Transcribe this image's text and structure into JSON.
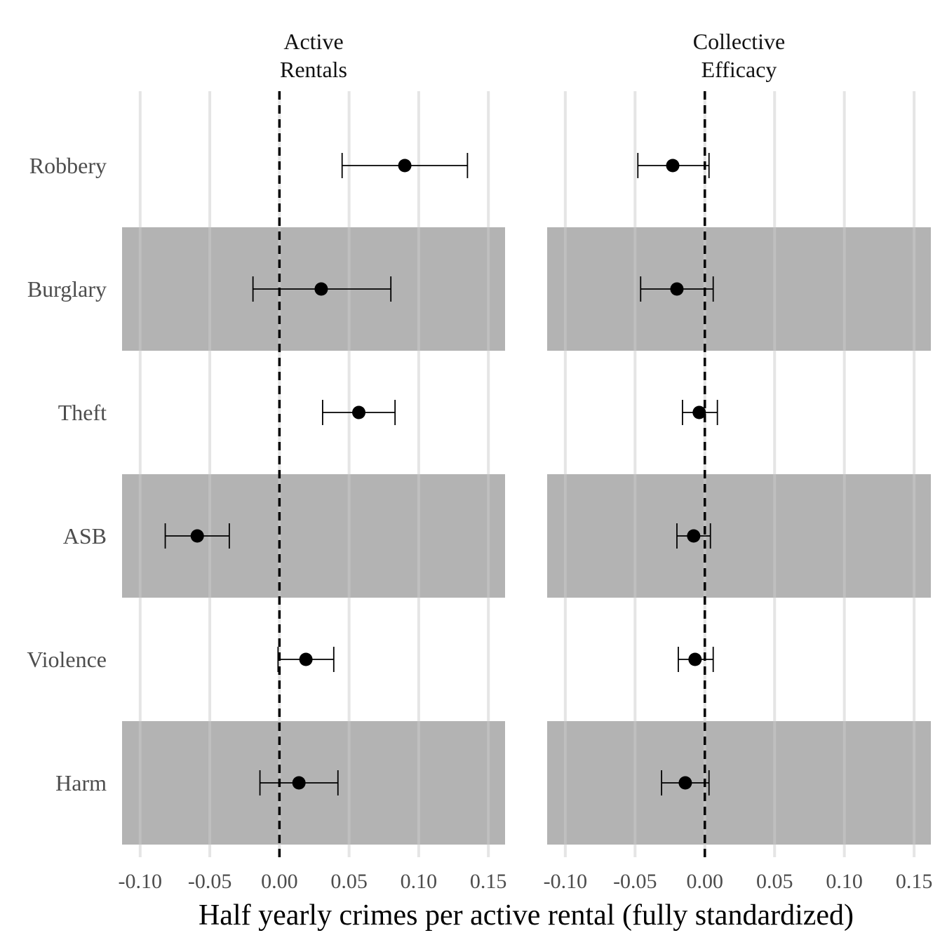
{
  "chart_data": {
    "type": "scatter",
    "subtype": "coefficient-plot-with-error-bars",
    "xlabel": "Half yearly crimes per active rental (fully standardized)",
    "x_ticks": [
      "-0.10",
      "-0.05",
      "0.00",
      "0.05",
      "0.10",
      "0.15"
    ],
    "xlim": [
      -0.113,
      0.162
    ],
    "reference_line_x": 0,
    "categories": [
      "Robbery",
      "Burglary",
      "Theft",
      "ASB",
      "Violence",
      "Harm"
    ],
    "shaded_rows": [
      "Burglary",
      "ASB",
      "Harm"
    ],
    "grid": "vertical-major",
    "facets": [
      {
        "title_lines": [
          "Active",
          "Rentals"
        ],
        "points": [
          {
            "category": "Robbery",
            "estimate": 0.09,
            "lower": 0.045,
            "upper": 0.135
          },
          {
            "category": "Burglary",
            "estimate": 0.03,
            "lower": -0.019,
            "upper": 0.08
          },
          {
            "category": "Theft",
            "estimate": 0.057,
            "lower": 0.031,
            "upper": 0.083
          },
          {
            "category": "ASB",
            "estimate": -0.059,
            "lower": -0.082,
            "upper": -0.036
          },
          {
            "category": "Violence",
            "estimate": 0.019,
            "lower": -0.001,
            "upper": 0.039
          },
          {
            "category": "Harm",
            "estimate": 0.014,
            "lower": -0.014,
            "upper": 0.042
          }
        ]
      },
      {
        "title_lines": [
          "Collective",
          "Efficacy"
        ],
        "points": [
          {
            "category": "Robbery",
            "estimate": -0.023,
            "lower": -0.048,
            "upper": 0.003
          },
          {
            "category": "Burglary",
            "estimate": -0.02,
            "lower": -0.046,
            "upper": 0.006
          },
          {
            "category": "Theft",
            "estimate": -0.004,
            "lower": -0.016,
            "upper": 0.009
          },
          {
            "category": "ASB",
            "estimate": -0.008,
            "lower": -0.02,
            "upper": 0.004
          },
          {
            "category": "Violence",
            "estimate": -0.007,
            "lower": -0.019,
            "upper": 0.006
          },
          {
            "category": "Harm",
            "estimate": -0.014,
            "lower": -0.031,
            "upper": 0.003
          }
        ]
      }
    ],
    "colors": {
      "band": "#b3b3b3",
      "grid": "#e5e5e5",
      "point": "#000000",
      "reference_line": "#000000"
    }
  }
}
